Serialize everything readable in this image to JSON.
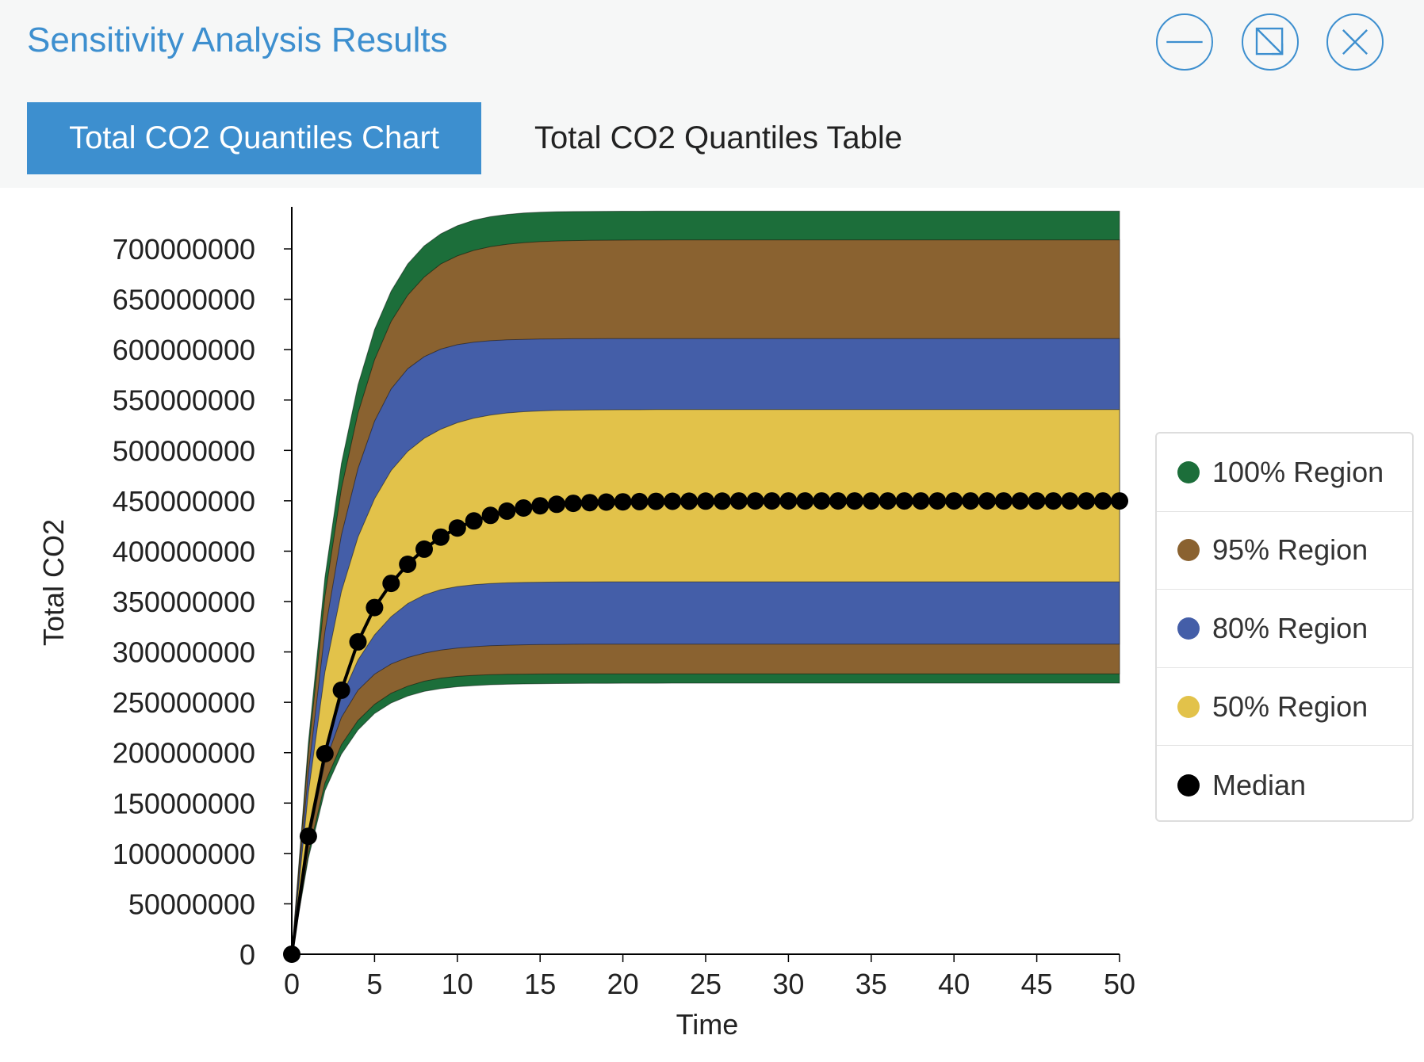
{
  "window": {
    "title": "Sensitivity Analysis Results",
    "controls": {
      "minimize_icon": "minus-icon",
      "restore_icon": "resize-icon",
      "close_icon": "close-icon"
    }
  },
  "tabs": [
    {
      "label": "Total CO2 Quantiles Chart",
      "active": true
    },
    {
      "label": "Total CO2 Quantiles Table",
      "active": false
    }
  ],
  "colors": {
    "accent": "#3d8fcf",
    "region_100": "#1c6e3a",
    "region_95": "#8a6230",
    "region_80": "#445ea8",
    "region_50": "#e2c24a",
    "median": "#000000"
  },
  "legend": {
    "items": [
      {
        "label": "100% Region",
        "color": "#1c6e3a"
      },
      {
        "label": "95% Region",
        "color": "#8a6230"
      },
      {
        "label": "80% Region",
        "color": "#445ea8"
      },
      {
        "label": "50% Region",
        "color": "#e2c24a"
      },
      {
        "label": "Median",
        "color": "#000000"
      }
    ]
  },
  "chart_data": {
    "type": "area",
    "xlabel": "Time",
    "ylabel": "Total CO2",
    "xlim": [
      0,
      50
    ],
    "ylim": [
      0,
      737000000
    ],
    "x_ticks": [
      "0",
      "5",
      "10",
      "15",
      "20",
      "25",
      "30",
      "35",
      "40",
      "45",
      "50"
    ],
    "y_ticks": [
      "0",
      "50000000",
      "100000000",
      "150000000",
      "200000000",
      "250000000",
      "300000000",
      "350000000",
      "400000000",
      "450000000",
      "500000000",
      "550000000",
      "600000000",
      "650000000",
      "700000000"
    ],
    "grid": false,
    "legend_position": "right",
    "x": [
      0,
      1,
      2,
      3,
      4,
      5,
      6,
      7,
      8,
      9,
      10,
      11,
      12,
      13,
      14,
      15,
      16,
      17,
      18,
      19,
      20,
      21,
      22,
      23,
      24,
      25,
      26,
      27,
      28,
      29,
      30,
      31,
      32,
      33,
      34,
      35,
      36,
      37,
      38,
      39,
      40,
      41,
      42,
      43,
      44,
      45,
      46,
      47,
      48,
      49,
      50
    ],
    "regions": [
      {
        "name": "100% Region",
        "lower": [
          0,
          95120000,
          162280000,
          198500000,
          222500000,
          238900000,
          249300000,
          256200000,
          260800000,
          263600000,
          265500000,
          266600000,
          267400000,
          267900000,
          268200000,
          268400000,
          268600000,
          268700000,
          268800000,
          268800000,
          268900000,
          268900000,
          268900000,
          269000000,
          269000000,
          269000000,
          269000000,
          269000000,
          269000000,
          269000000,
          269000000,
          269000000,
          269000000,
          269000000,
          269000000,
          269000000,
          269000000,
          269000000,
          269000000,
          269000000,
          269000000,
          269000000,
          269000000,
          269000000,
          269000000,
          269000000,
          269000000,
          269000000,
          269000000,
          269000000,
          269000000
        ],
        "upper": [
          0,
          210000000,
          374000000,
          487000000,
          565000000,
          620000000,
          658000000,
          685000000,
          703000000,
          715000000,
          723000000,
          728500000,
          732000000,
          734200000,
          735600000,
          736400000,
          736900000,
          737100000,
          737200000,
          737300000,
          737400000,
          737400000,
          737500000,
          737500000,
          737500000,
          737500000,
          737500000,
          737500000,
          737500000,
          737500000,
          737500000,
          737500000,
          737500000,
          737500000,
          737500000,
          737500000,
          737500000,
          737500000,
          737500000,
          737500000,
          737500000,
          737500000,
          737500000,
          737500000,
          737500000,
          737500000,
          737500000,
          737500000,
          737500000,
          737500000,
          737500000
        ]
      },
      {
        "name": "95% Region",
        "lower": [
          0,
          100000000,
          170000000,
          208000000,
          232000000,
          248000000,
          259000000,
          266000000,
          271000000,
          274000000,
          275800000,
          276800000,
          277400000,
          277800000,
          278000000,
          278100000,
          278200000,
          278200000,
          278300000,
          278300000,
          278300000,
          278300000,
          278300000,
          278300000,
          278300000,
          278300000,
          278300000,
          278300000,
          278300000,
          278300000,
          278300000,
          278300000,
          278300000,
          278300000,
          278300000,
          278300000,
          278300000,
          278300000,
          278300000,
          278300000,
          278300000,
          278300000,
          278300000,
          278300000,
          278300000,
          278300000,
          278300000,
          278300000,
          278300000,
          278300000,
          278300000
        ],
        "upper": [
          0,
          200000000,
          355000000,
          462000000,
          537000000,
          590000000,
          628000000,
          654000000,
          672000000,
          685000000,
          693000000,
          698500000,
          702200000,
          704600000,
          706200000,
          707200000,
          707800000,
          708200000,
          708500000,
          708600000,
          708700000,
          708800000,
          708800000,
          708900000,
          708900000,
          708900000,
          708900000,
          708900000,
          708900000,
          708900000,
          708900000,
          708900000,
          708900000,
          708900000,
          708900000,
          708900000,
          708900000,
          708900000,
          708900000,
          708900000,
          708900000,
          708900000,
          708900000,
          708900000,
          708900000,
          708900000,
          708900000,
          708900000,
          708900000,
          708900000,
          708900000
        ]
      },
      {
        "name": "80% Region",
        "lower": [
          0,
          110000000,
          190000000,
          235000000,
          262000000,
          278000000,
          288000000,
          294500000,
          298800000,
          301800000,
          303800000,
          305200000,
          306100000,
          306700000,
          307100000,
          307300000,
          307500000,
          307600000,
          307700000,
          307700000,
          307800000,
          307800000,
          307800000,
          307800000,
          307800000,
          307800000,
          307800000,
          307800000,
          307800000,
          307800000,
          307800000,
          307800000,
          307800000,
          307800000,
          307800000,
          307800000,
          307800000,
          307800000,
          307800000,
          307800000,
          307800000,
          307800000,
          307800000,
          307800000,
          307800000,
          307800000,
          307800000,
          307800000,
          307800000,
          307800000,
          307800000
        ],
        "upper": [
          0,
          180000000,
          320000000,
          416000000,
          482000000,
          529000000,
          561000000,
          581000000,
          593000000,
          600500000,
          604900000,
          607400000,
          608900000,
          609700000,
          610200000,
          610500000,
          610700000,
          610800000,
          610800000,
          610900000,
          610900000,
          610900000,
          610900000,
          610900000,
          610900000,
          610900000,
          610900000,
          610900000,
          610900000,
          610900000,
          610900000,
          610900000,
          610900000,
          610900000,
          610900000,
          610900000,
          610900000,
          610900000,
          610900000,
          610900000,
          610900000,
          610900000,
          610900000,
          610900000,
          610900000,
          610900000,
          610900000,
          610900000,
          610900000,
          610900000,
          610900000
        ]
      },
      {
        "name": "50% Region",
        "lower": [
          0,
          115000000,
          200000000,
          255000000,
          292000000,
          317000000,
          335000000,
          348000000,
          356500000,
          361800000,
          364900000,
          366800000,
          367900000,
          368600000,
          369000000,
          369200000,
          369400000,
          369500000,
          369500000,
          369600000,
          369600000,
          369600000,
          369600000,
          369600000,
          369600000,
          369600000,
          369600000,
          369600000,
          369600000,
          369600000,
          369600000,
          369600000,
          369600000,
          369600000,
          369600000,
          369600000,
          369600000,
          369600000,
          369600000,
          369600000,
          369600000,
          369600000,
          369600000,
          369600000,
          369600000,
          369600000,
          369600000,
          369600000,
          369600000,
          369600000,
          369600000
        ],
        "upper": [
          0,
          160000000,
          280000000,
          360000000,
          414000000,
          452000000,
          480000000,
          499000000,
          512000000,
          521000000,
          527500000,
          532000000,
          535000000,
          537100000,
          538400000,
          539200000,
          539700000,
          540000000,
          540200000,
          540300000,
          540400000,
          540400000,
          540500000,
          540500000,
          540500000,
          540500000,
          540500000,
          540500000,
          540500000,
          540500000,
          540500000,
          540500000,
          540500000,
          540500000,
          540500000,
          540500000,
          540500000,
          540500000,
          540500000,
          540500000,
          540500000,
          540500000,
          540500000,
          540500000,
          540500000,
          540500000,
          540500000,
          540500000,
          540500000,
          540500000,
          540500000
        ]
      }
    ],
    "median": {
      "name": "Median",
      "values": [
        0,
        117000000,
        199000000,
        262000000,
        310000000,
        344000000,
        368000000,
        387000000,
        402000000,
        414000000,
        423000000,
        430000000,
        435500000,
        439800000,
        442800000,
        445000000,
        446500000,
        447500000,
        448200000,
        448700000,
        449000000,
        449200000,
        449400000,
        449500000,
        449600000,
        449700000,
        449700000,
        449800000,
        449800000,
        449800000,
        449800000,
        449800000,
        449800000,
        449800000,
        449800000,
        449800000,
        449800000,
        449800000,
        449800000,
        449800000,
        449800000,
        449800000,
        449800000,
        449800000,
        449800000,
        449800000,
        449800000,
        449800000,
        449800000,
        449800000,
        449800000
      ]
    }
  }
}
